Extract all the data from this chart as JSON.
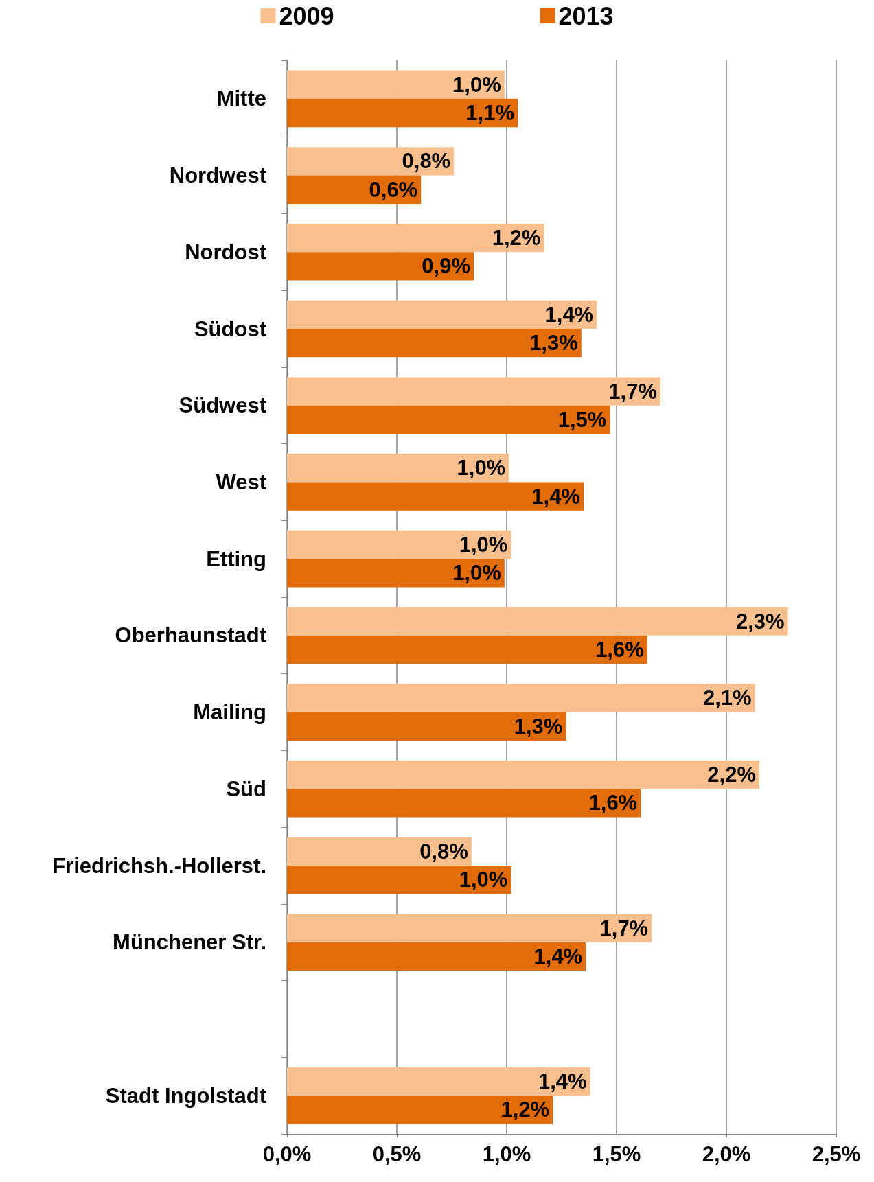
{
  "chart_data": {
    "type": "bar",
    "orientation": "horizontal",
    "categories": [
      "Mitte",
      "Nordwest",
      "Nordost",
      "Südost",
      "Südwest",
      "West",
      "Etting",
      "Oberhaunstadt",
      "Mailing",
      "Süd",
      "Friedrichsh.-Hollerst.",
      "Münchener Str.",
      null,
      "Stadt Ingolstadt"
    ],
    "series": [
      {
        "name": "2009",
        "color": "#f9c08f",
        "values": [
          0.99,
          0.76,
          1.17,
          1.41,
          1.7,
          1.01,
          1.02,
          2.28,
          2.13,
          2.15,
          0.84,
          1.66,
          null,
          1.38
        ],
        "value_labels": [
          "1,0%",
          "0,8%",
          "1,2%",
          "1,4%",
          "1,7%",
          "1,0%",
          "1,0%",
          "2,3%",
          "2,1%",
          "2,2%",
          "0,8%",
          "1,7%",
          null,
          "1,4%"
        ]
      },
      {
        "name": "2013",
        "color": "#e36c0a",
        "values": [
          1.05,
          0.61,
          0.85,
          1.34,
          1.47,
          1.35,
          0.99,
          1.64,
          1.27,
          1.61,
          1.02,
          1.36,
          null,
          1.21
        ],
        "value_labels": [
          "1,1%",
          "0,6%",
          "0,9%",
          "1,3%",
          "1,5%",
          "1,4%",
          "1,0%",
          "1,6%",
          "1,3%",
          "1,6%",
          "1,0%",
          "1,4%",
          null,
          "1,2%"
        ]
      }
    ],
    "xlim": [
      0,
      2.5
    ],
    "xticks": [
      {
        "value": 0,
        "label": "0,0%"
      },
      {
        "value": 0.5,
        "label": "0,5%"
      },
      {
        "value": 1,
        "label": "1,0%"
      },
      {
        "value": 1.5,
        "label": "1,5%"
      },
      {
        "value": 2,
        "label": "2,0%"
      },
      {
        "value": 2.5,
        "label": "2,5%"
      }
    ],
    "grid": "x",
    "legend": "top"
  }
}
